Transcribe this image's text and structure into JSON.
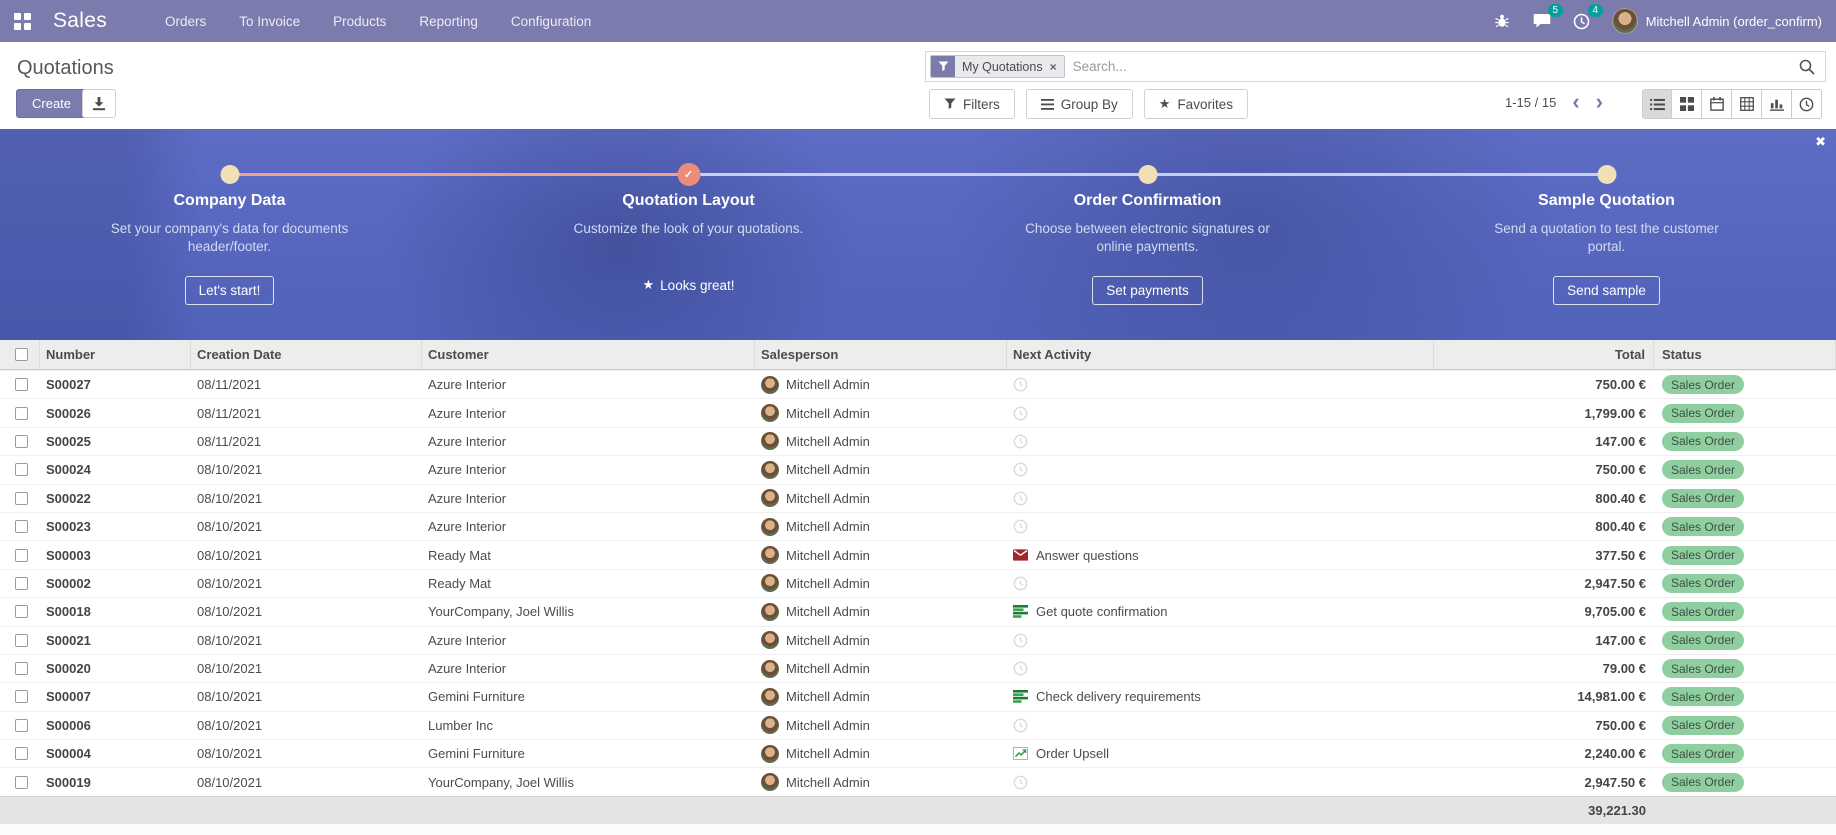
{
  "colors": {
    "accent": "#7c7bad",
    "badge": "#00a09d",
    "banner": "#5b6ac0",
    "salmon": "#f0a292",
    "salmon_dark": "#ec8d79",
    "dot": "#f1dfb6",
    "status_bg": "#8fcf9f",
    "status_text": "#3f4f45"
  },
  "navbar": {
    "app_name": "Sales",
    "menus": [
      "Orders",
      "To Invoice",
      "Products",
      "Reporting",
      "Configuration"
    ],
    "messages_count": "5",
    "activities_count": "4",
    "user": "Mitchell Admin (order_confirm)"
  },
  "control_panel": {
    "title": "Quotations",
    "create_label": "Create",
    "search": {
      "facet": "My Quotations",
      "placeholder": "Search..."
    },
    "filters_label": "Filters",
    "group_by_label": "Group By",
    "favorites_label": "Favorites",
    "pager": "1-15 / 15",
    "pager_prev": "‹",
    "pager_next": "›"
  },
  "onboarding": {
    "close_label": "✖",
    "steps": [
      {
        "title": "Company Data",
        "description": "Set your company's data for documents header/footer.",
        "action": "Let's start!",
        "state": "todo"
      },
      {
        "title": "Quotation Layout",
        "description": "Customize the look of your quotations.",
        "action": "Looks great!",
        "state": "done"
      },
      {
        "title": "Order Confirmation",
        "description": "Choose between electronic signatures or online payments.",
        "action": "Set payments",
        "state": "todo"
      },
      {
        "title": "Sample Quotation",
        "description": "Send a quotation to test the customer portal.",
        "action": "Send sample",
        "state": "todo"
      }
    ]
  },
  "table": {
    "columns": [
      "Number",
      "Creation Date",
      "Customer",
      "Salesperson",
      "Next Activity",
      "Total",
      "Status"
    ],
    "rows": [
      {
        "number": "S00027",
        "date": "08/11/2021",
        "customer": "Azure Interior",
        "salesperson": "Mitchell Admin",
        "activity": {
          "icon": "clock",
          "label": ""
        },
        "total": "750.00 €",
        "status": "Sales Order"
      },
      {
        "number": "S00026",
        "date": "08/11/2021",
        "customer": "Azure Interior",
        "salesperson": "Mitchell Admin",
        "activity": {
          "icon": "clock",
          "label": ""
        },
        "total": "1,799.00 €",
        "status": "Sales Order"
      },
      {
        "number": "S00025",
        "date": "08/11/2021",
        "customer": "Azure Interior",
        "salesperson": "Mitchell Admin",
        "activity": {
          "icon": "clock",
          "label": ""
        },
        "total": "147.00 €",
        "status": "Sales Order"
      },
      {
        "number": "S00024",
        "date": "08/10/2021",
        "customer": "Azure Interior",
        "salesperson": "Mitchell Admin",
        "activity": {
          "icon": "clock",
          "label": ""
        },
        "total": "750.00 €",
        "status": "Sales Order"
      },
      {
        "number": "S00022",
        "date": "08/10/2021",
        "customer": "Azure Interior",
        "salesperson": "Mitchell Admin",
        "activity": {
          "icon": "clock",
          "label": ""
        },
        "total": "800.40 €",
        "status": "Sales Order"
      },
      {
        "number": "S00023",
        "date": "08/10/2021",
        "customer": "Azure Interior",
        "salesperson": "Mitchell Admin",
        "activity": {
          "icon": "clock",
          "label": ""
        },
        "total": "800.40 €",
        "status": "Sales Order"
      },
      {
        "number": "S00003",
        "date": "08/10/2021",
        "customer": "Ready Mat",
        "salesperson": "Mitchell Admin",
        "activity": {
          "icon": "email",
          "label": "Answer questions"
        },
        "total": "377.50 €",
        "status": "Sales Order"
      },
      {
        "number": "S00002",
        "date": "08/10/2021",
        "customer": "Ready Mat",
        "salesperson": "Mitchell Admin",
        "activity": {
          "icon": "clock",
          "label": ""
        },
        "total": "2,947.50 €",
        "status": "Sales Order"
      },
      {
        "number": "S00018",
        "date": "08/10/2021",
        "customer": "YourCompany, Joel Willis",
        "salesperson": "Mitchell Admin",
        "activity": {
          "icon": "list",
          "label": "Get quote confirmation"
        },
        "total": "9,705.00 €",
        "status": "Sales Order"
      },
      {
        "number": "S00021",
        "date": "08/10/2021",
        "customer": "Azure Interior",
        "salesperson": "Mitchell Admin",
        "activity": {
          "icon": "clock",
          "label": ""
        },
        "total": "147.00 €",
        "status": "Sales Order"
      },
      {
        "number": "S00020",
        "date": "08/10/2021",
        "customer": "Azure Interior",
        "salesperson": "Mitchell Admin",
        "activity": {
          "icon": "clock",
          "label": ""
        },
        "total": "79.00 €",
        "status": "Sales Order"
      },
      {
        "number": "S00007",
        "date": "08/10/2021",
        "customer": "Gemini Furniture",
        "salesperson": "Mitchell Admin",
        "activity": {
          "icon": "list",
          "label": "Check delivery requirements"
        },
        "total": "14,981.00 €",
        "status": "Sales Order"
      },
      {
        "number": "S00006",
        "date": "08/10/2021",
        "customer": "Lumber Inc",
        "salesperson": "Mitchell Admin",
        "activity": {
          "icon": "clock",
          "label": ""
        },
        "total": "750.00 €",
        "status": "Sales Order"
      },
      {
        "number": "S00004",
        "date": "08/10/2021",
        "customer": "Gemini Furniture",
        "salesperson": "Mitchell Admin",
        "activity": {
          "icon": "upsell",
          "label": "Order Upsell"
        },
        "total": "2,240.00 €",
        "status": "Sales Order"
      },
      {
        "number": "S00019",
        "date": "08/10/2021",
        "customer": "YourCompany, Joel Willis",
        "salesperson": "Mitchell Admin",
        "activity": {
          "icon": "clock",
          "label": ""
        },
        "total": "2,947.50 €",
        "status": "Sales Order"
      }
    ],
    "footer_total": "39,221.30"
  }
}
